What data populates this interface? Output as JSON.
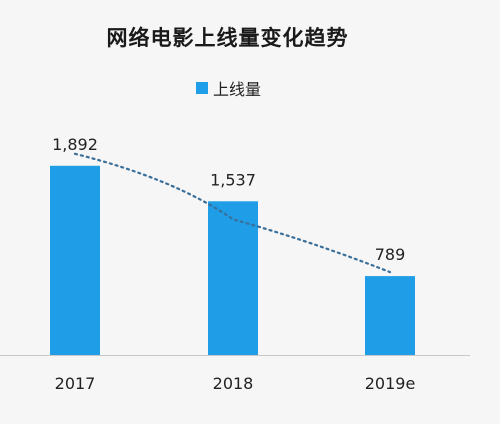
{
  "chart_data": {
    "type": "bar",
    "title": "网络电影上线量变化趋势",
    "categories": [
      "2017",
      "2018",
      "2019e"
    ],
    "series": [
      {
        "name": "上线量",
        "values": [
          1892,
          1537,
          789
        ],
        "labels": [
          "1,892",
          "1,537",
          "789"
        ]
      }
    ],
    "ylim": [
      0,
      2700
    ],
    "trendline": "dotted",
    "legend": "top-center",
    "grid": false,
    "colors": {
      "bar": "#1f9de6",
      "trendline": "#3a6f9a",
      "axis": "#c8c8c8"
    }
  }
}
